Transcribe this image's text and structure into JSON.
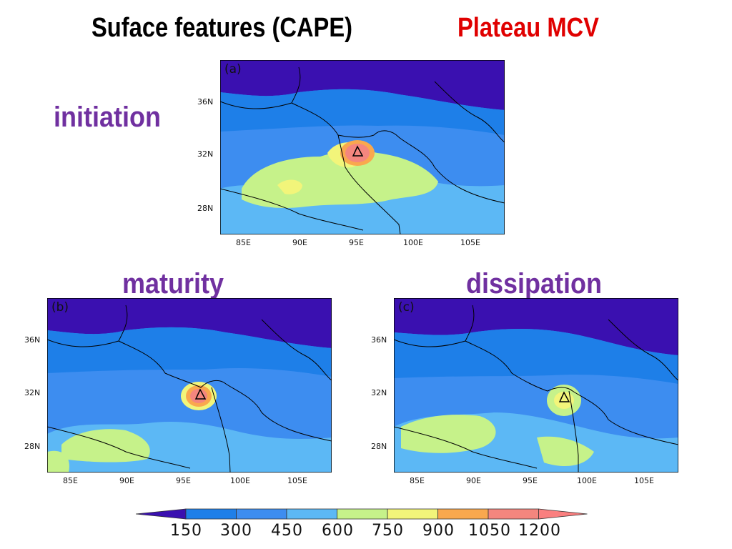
{
  "header": {
    "title": "Suface features (CAPE)",
    "subtitle": "Plateau MCV"
  },
  "panels": [
    {
      "stage": "initiation",
      "label": "(a)"
    },
    {
      "stage": "maturity",
      "label": "(b)"
    },
    {
      "stage": "dissipation",
      "label": "(c)"
    }
  ],
  "axes": {
    "lat_labels": [
      "36N",
      "32N",
      "28N"
    ],
    "lon_labels": [
      "85E",
      "90E",
      "95E",
      "100E",
      "105E"
    ]
  },
  "colorbar": {
    "labels": [
      "150",
      "300",
      "450",
      "600",
      "750",
      "900",
      "1050",
      "1200"
    ],
    "colors": [
      "#3a10b0",
      "#1e7fe8",
      "#3d8df0",
      "#5cb8f5",
      "#c6f28a",
      "#f2f57a",
      "#f9a84e",
      "#f4867e",
      "#fa7f7f"
    ]
  },
  "colors": {
    "title": "#000000",
    "subtitle": "#e00000",
    "stage": "#7030a0"
  },
  "marker": "triangle-icon"
}
